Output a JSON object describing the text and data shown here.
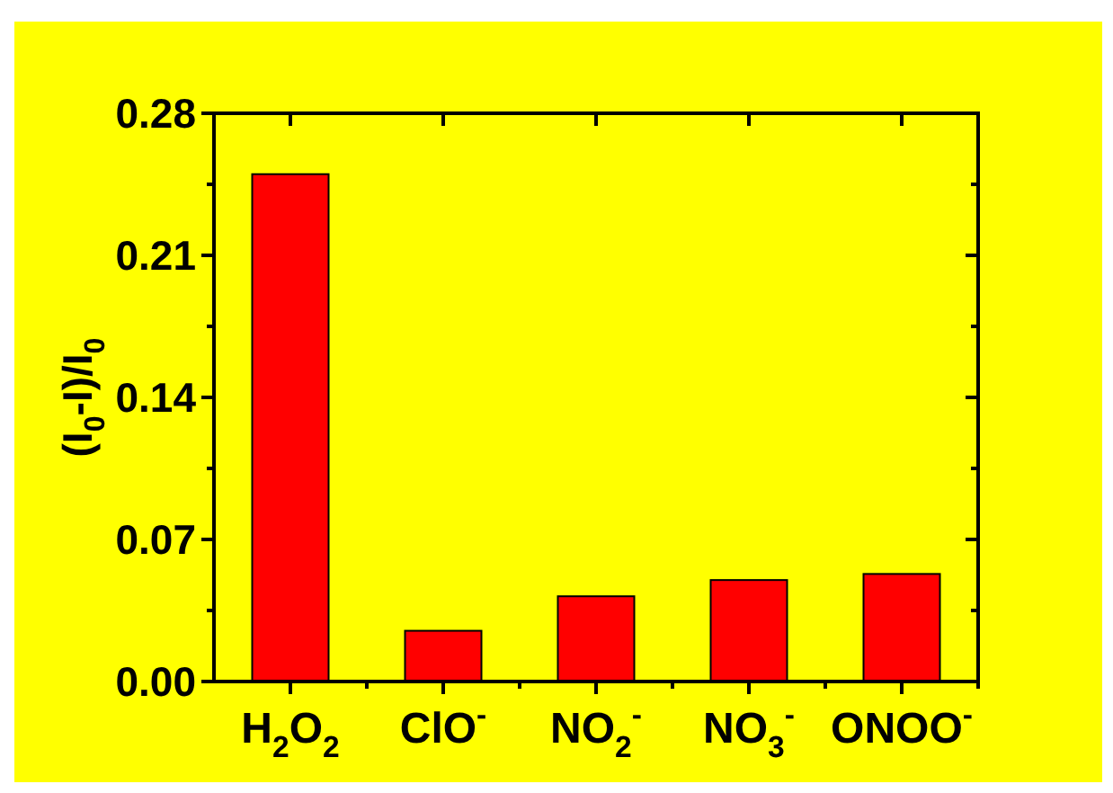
{
  "chart_data": {
    "type": "bar",
    "ylabel": "(I$_{0}$-I)/I$_{0}$",
    "categories": [
      "H$_{2}$O$_{2}$",
      "ClO$^{-}$",
      "NO$_{2}$$^{-}$",
      "NO$_{3}$$^{-}$",
      "ONOO$^{-}$"
    ],
    "values": [
      0.25,
      0.025,
      0.042,
      0.05,
      0.053
    ],
    "color": "#ff0000",
    "ylim": [
      0,
      0.28
    ],
    "yticks": [
      {
        "value": 0,
        "label": "0.00"
      },
      {
        "value": 0.035,
        "label": null
      },
      {
        "value": 0.07,
        "label": "0.07"
      },
      {
        "value": 0.105,
        "label": null
      },
      0.14,
      {
        "value": 0.175,
        "label": null
      },
      0.21,
      {
        "value": 0.245,
        "label": null
      },
      0.28
    ],
    "grid": false
  }
}
